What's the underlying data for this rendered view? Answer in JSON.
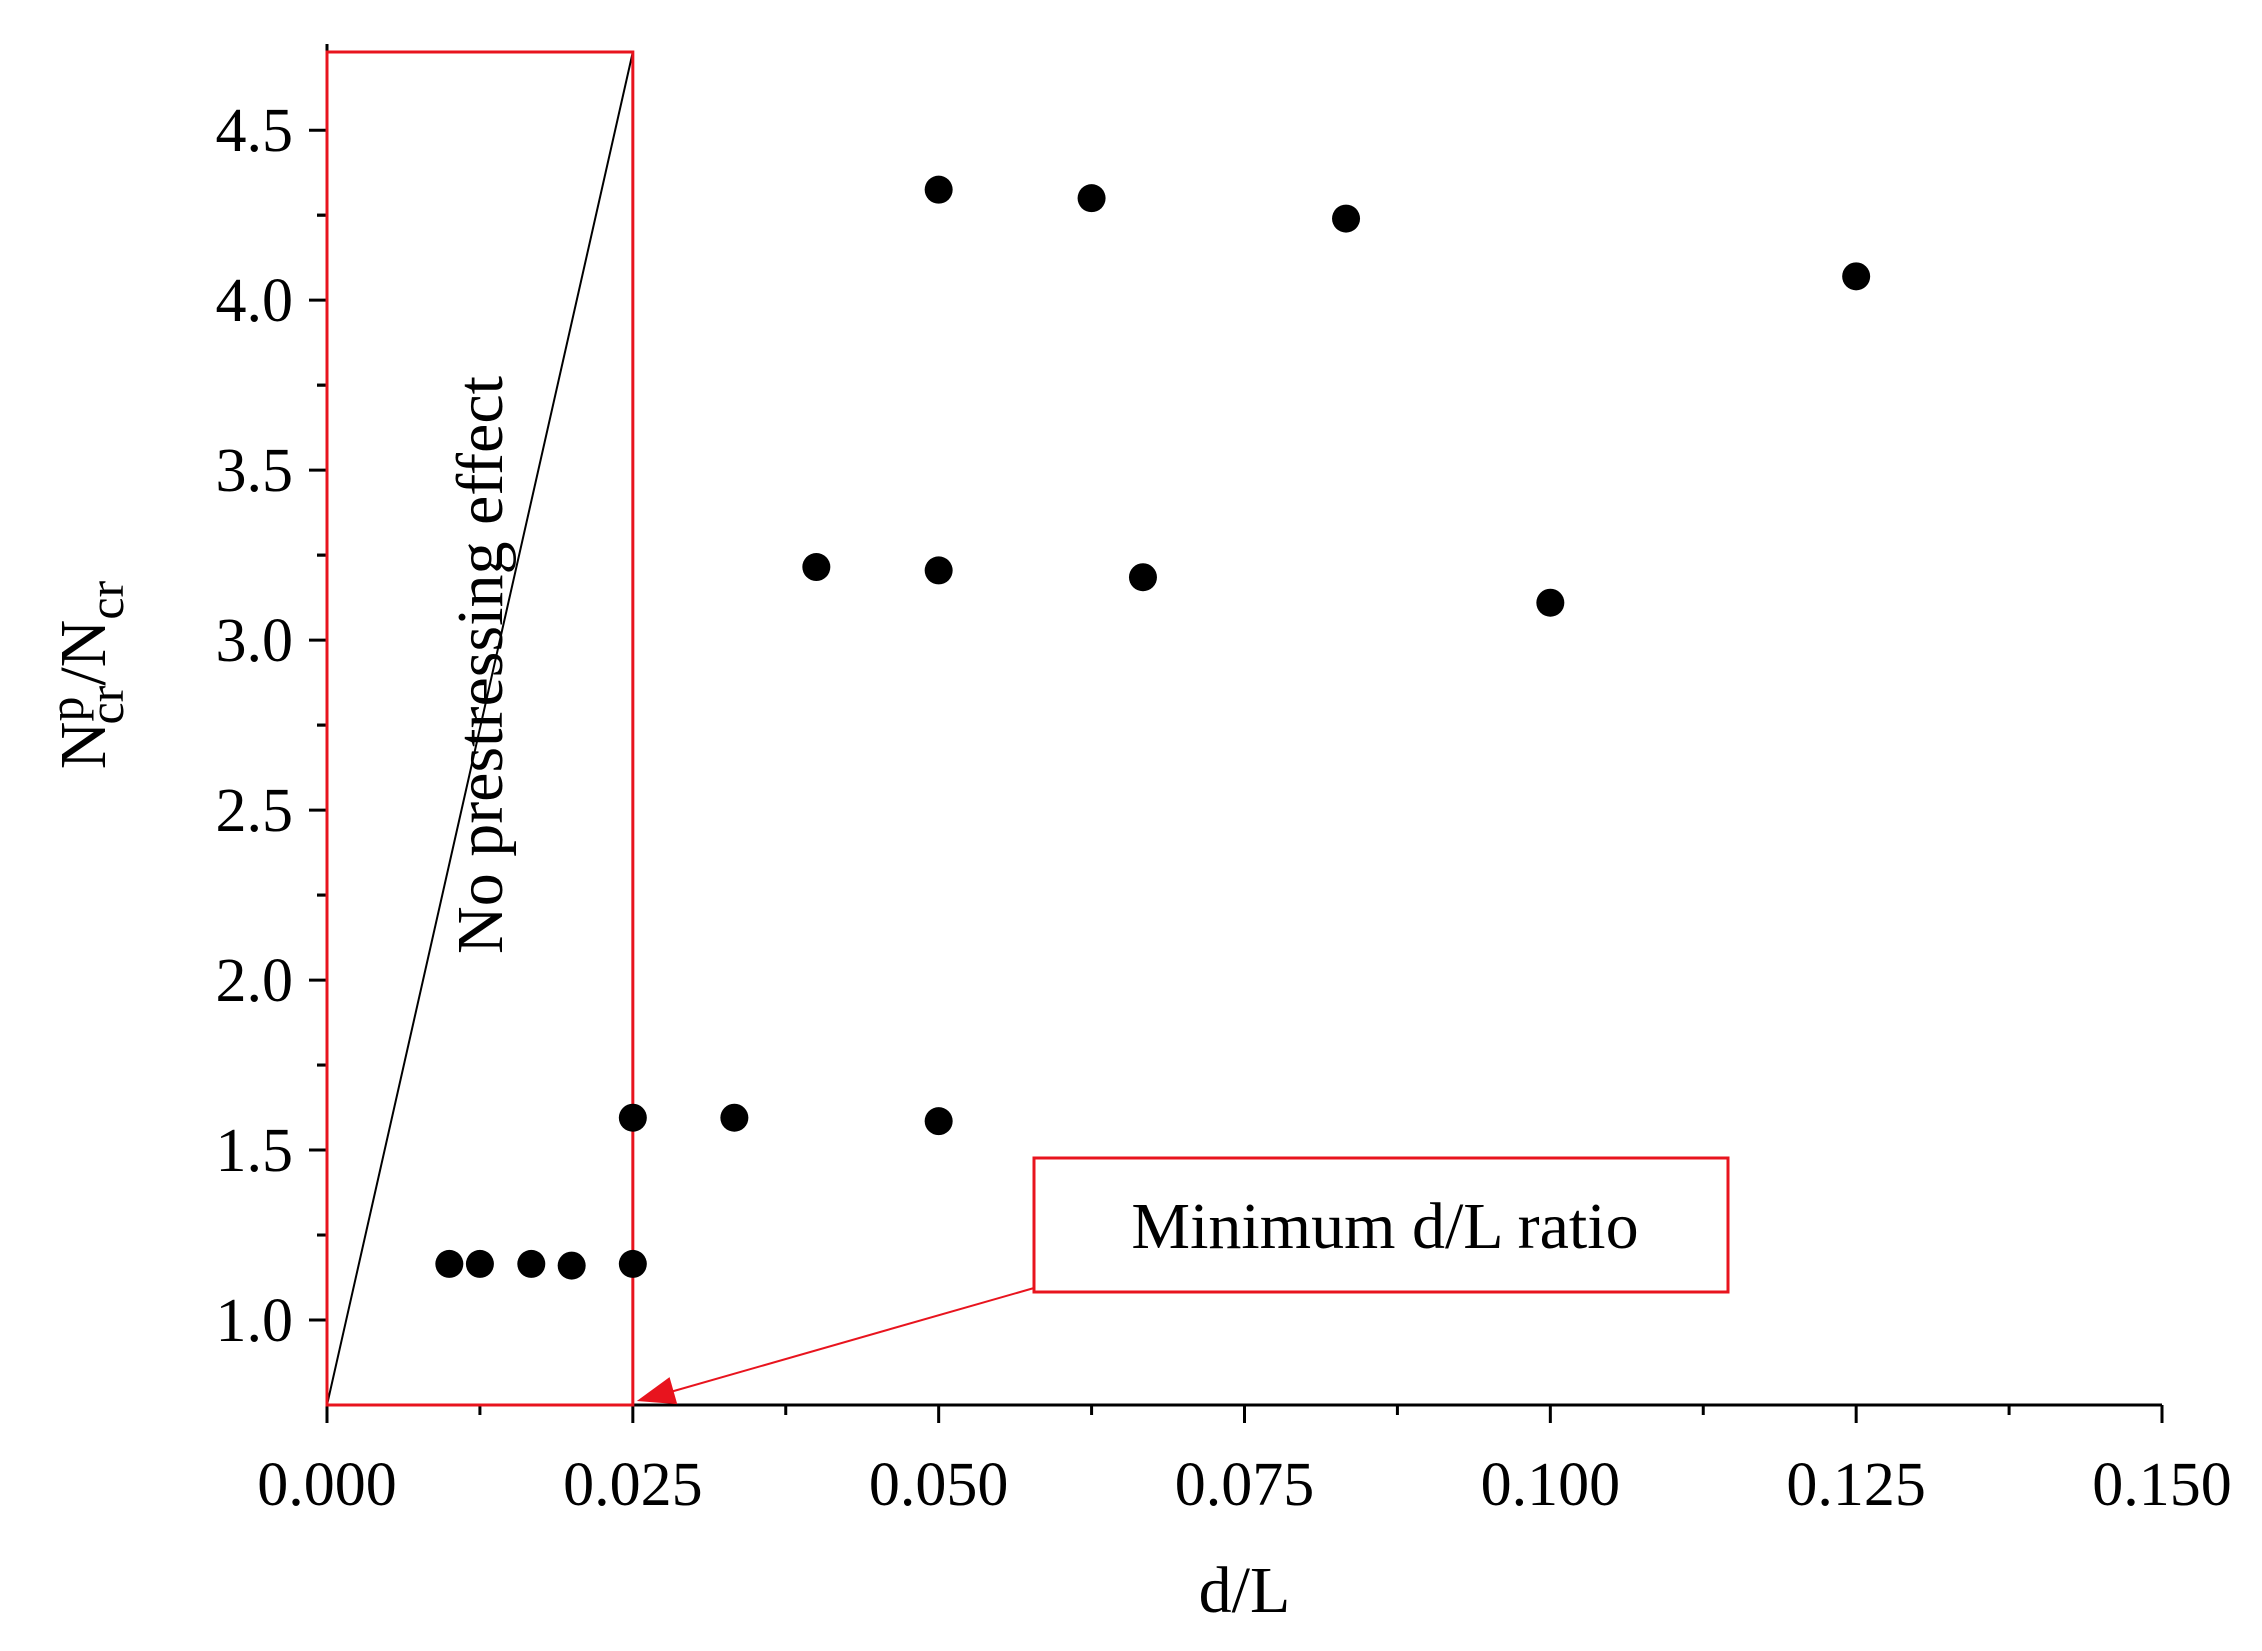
{
  "chart_data": {
    "type": "scatter",
    "title": "",
    "xlabel": "d/L",
    "ylabel": {
      "base": "N",
      "sup": "p",
      "sub": "cr",
      "sep": "/N",
      "sub2": "cr"
    },
    "xlim": [
      0.0,
      0.15
    ],
    "ylim": [
      0.75,
      4.73
    ],
    "x_ticks": [
      "0.000",
      "0.025",
      "0.050",
      "0.075",
      "0.100",
      "0.125",
      "0.150"
    ],
    "y_ticks": [
      "1.0",
      "1.5",
      "2.0",
      "2.5",
      "3.0",
      "3.5",
      "4.0",
      "4.5"
    ],
    "grid": false,
    "series": [
      {
        "points": [
          {
            "x": 0.01,
            "y": 1.165
          },
          {
            "x": 0.0125,
            "y": 1.165
          },
          {
            "x": 0.0167,
            "y": 1.165
          },
          {
            "x": 0.02,
            "y": 1.16
          },
          {
            "x": 0.025,
            "y": 1.165
          },
          {
            "x": 0.025,
            "y": 1.595
          },
          {
            "x": 0.0333,
            "y": 1.595
          },
          {
            "x": 0.05,
            "y": 1.585
          },
          {
            "x": 0.04,
            "y": 3.215
          },
          {
            "x": 0.05,
            "y": 3.205
          },
          {
            "x": 0.0667,
            "y": 3.185
          },
          {
            "x": 0.1,
            "y": 3.11
          },
          {
            "x": 0.05,
            "y": 4.325
          },
          {
            "x": 0.0625,
            "y": 4.3
          },
          {
            "x": 0.0833,
            "y": 4.24
          },
          {
            "x": 0.125,
            "y": 4.07
          }
        ]
      }
    ],
    "annotations": {
      "region_label": "No prestressing effect",
      "region_x": [
        0.0,
        0.025
      ],
      "callout_label": "Minimum d/L ratio",
      "callout_target": {
        "x": 0.025,
        "y": 0.75
      }
    },
    "colors": {
      "points": "#000000",
      "annotation": "#e8141e",
      "axes": "#000000"
    }
  }
}
